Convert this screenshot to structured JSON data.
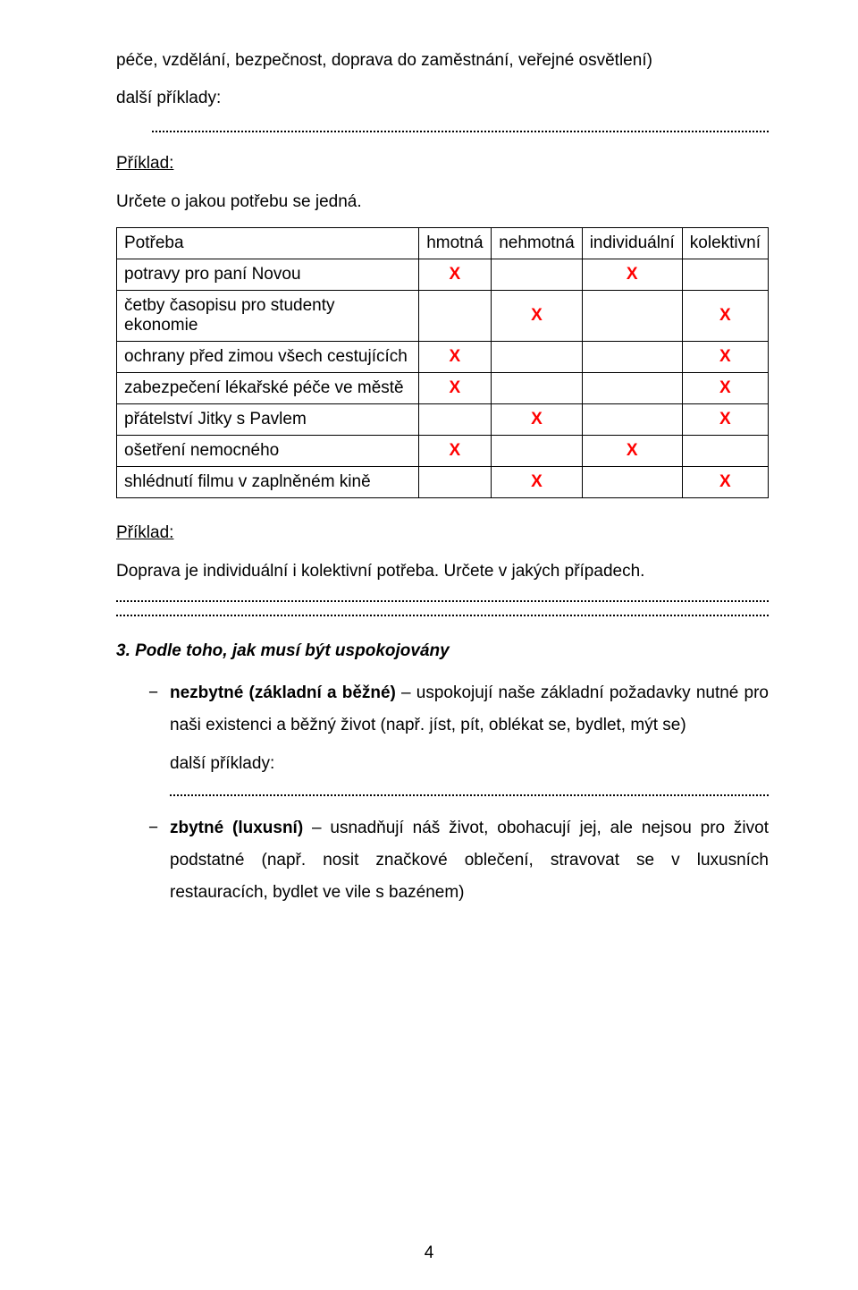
{
  "intro": {
    "line1": "péče, vzdělání, bezpečnost, doprava do zaměstnání, veřejné osvětlení)",
    "dalsi": "další příklady:"
  },
  "priklad1": {
    "label": "Příklad:",
    "instruction": "Určete o jakou potřebu se jedná."
  },
  "table": {
    "headers": [
      "Potřeba",
      "hmotná",
      "nehmotná",
      "individuální",
      "kolektivní"
    ],
    "rows": [
      {
        "label": "potravy pro paní Novou",
        "marks": [
          "X",
          "",
          "X",
          ""
        ]
      },
      {
        "label": "četby časopisu pro studenty ekonomie",
        "marks": [
          "",
          "X",
          "",
          "X"
        ]
      },
      {
        "label": "ochrany před zimou všech cestujících",
        "marks": [
          "X",
          "",
          "",
          "X"
        ]
      },
      {
        "label": "zabezpečení lékařské péče ve městě",
        "marks": [
          "X",
          "",
          "",
          "X"
        ]
      },
      {
        "label": "přátelství Jitky s Pavlem",
        "marks": [
          "",
          "X",
          "",
          "X"
        ]
      },
      {
        "label": "ošetření nemocného",
        "marks": [
          "X",
          "",
          "X",
          ""
        ]
      },
      {
        "label": "shlédnutí filmu v zaplněném kině",
        "marks": [
          "",
          "X",
          "",
          "X"
        ]
      }
    ]
  },
  "priklad2": {
    "label": "Příklad:",
    "text": "Doprava je individuální i kolektivní potřeba. Určete v jakých případech."
  },
  "section3": {
    "heading": "3. Podle toho, jak musí být uspokojovány",
    "bullet1_bold": "nezbytné (základní a běžné)",
    "bullet1_rest": " – uspokojují naše základní požadavky nutné pro naši existenci a běžný život (např. jíst, pít, oblékat se, bydlet, mýt se)",
    "bullet1_dalsi": "další příklady:",
    "bullet2_bold": "zbytné (luxusní)",
    "bullet2_rest": " – usnadňují náš život, obohacují jej, ale nejsou pro život podstatné (např. nosit značkové oblečení, stravovat se v luxusních restauracích, bydlet ve vile s bazénem)"
  },
  "pageNumber": "4"
}
